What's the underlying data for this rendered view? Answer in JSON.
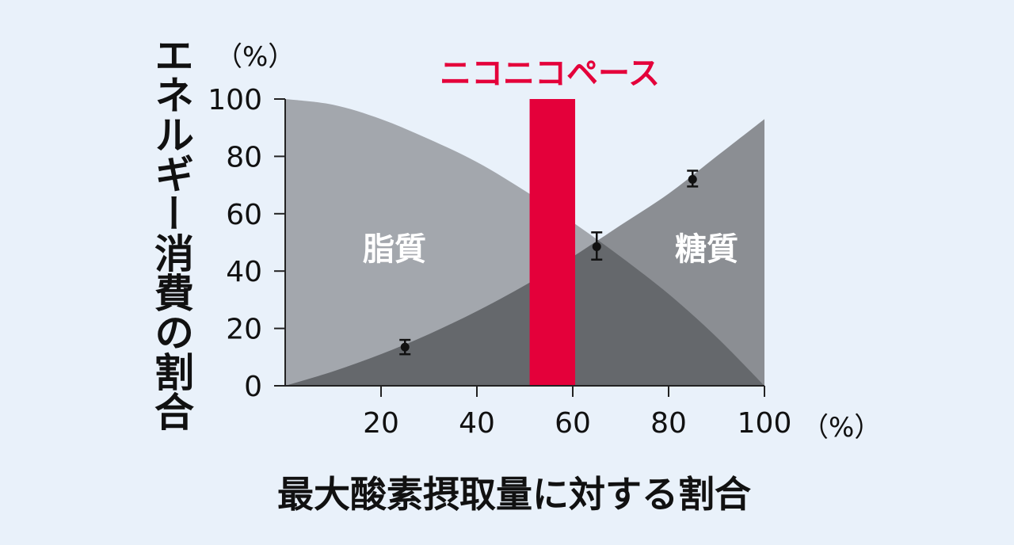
{
  "chart_data": {
    "type": "area",
    "ylabel": "エネルギー消費の割合",
    "xlabel": "最大酸素摂取量に対する割合",
    "y_unit": "（%）",
    "x_unit": "（%）",
    "xlim": [
      0,
      100
    ],
    "ylim": [
      0,
      100
    ],
    "x_ticks": [
      20,
      40,
      60,
      80,
      100
    ],
    "y_ticks": [
      0,
      20,
      40,
      60,
      80,
      100
    ],
    "curves": {
      "fat": {
        "label": "脂質",
        "x": [
          0,
          10,
          20,
          30,
          40,
          50,
          60,
          70,
          80,
          90,
          100
        ],
        "y": [
          100,
          98,
          93,
          86,
          78,
          68,
          57,
          45,
          32,
          17,
          0
        ]
      },
      "carb": {
        "label": "糖質",
        "x": [
          0,
          10,
          20,
          30,
          40,
          50,
          60,
          70,
          80,
          90,
          100
        ],
        "y": [
          0,
          5,
          11,
          18,
          26,
          35,
          45,
          56,
          67,
          80,
          93
        ]
      }
    },
    "data_points": [
      {
        "x": 25,
        "y": 13.5,
        "err_low": 11,
        "err_high": 16
      },
      {
        "x": 65,
        "y": 48.5,
        "err_low": 44,
        "err_high": 53.5
      },
      {
        "x": 85,
        "y": 72,
        "err_low": 69.5,
        "err_high": 75
      }
    ],
    "highlight": {
      "label": "ニコニコペース",
      "x_start": 51,
      "x_end": 60.5,
      "color": "#e4003a"
    },
    "colors": {
      "fat_area": "#a3a7ad",
      "carb_area": "#8b8e93",
      "overlap_area": "#65686c",
      "background": "#e9f1fa"
    }
  }
}
